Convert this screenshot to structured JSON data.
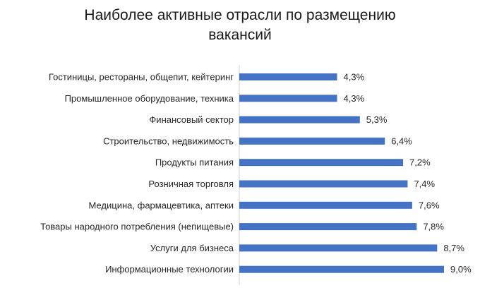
{
  "chart_data": {
    "type": "bar",
    "orientation": "horizontal",
    "title_lines": [
      "Наиболее активные отрасли по размещению",
      "вакансий"
    ],
    "categories": [
      "Гостиницы, рестораны, общепит, кейтеринг",
      "Промышленное оборудование, техника",
      "Финансовый сектор",
      "Строительство, недвижимость",
      "Продукты питания",
      "Розничная торговля",
      "Медицина, фармацевтика, аптеки",
      "Товары народного потребления (непищевые)",
      "Услуги для бизнеса",
      "Информационные технологии"
    ],
    "values": [
      4.3,
      4.3,
      5.3,
      6.4,
      7.2,
      7.4,
      7.6,
      7.8,
      8.7,
      9.0
    ],
    "value_labels": [
      "4,3%",
      "4,3%",
      "5,3%",
      "6,4%",
      "7,2%",
      "7,4%",
      "7,6%",
      "7,8%",
      "8,7%",
      "9,0%"
    ],
    "xlim": [
      0,
      9.5
    ],
    "grid": false,
    "legend": "none",
    "bar_color": "#4472C4"
  }
}
